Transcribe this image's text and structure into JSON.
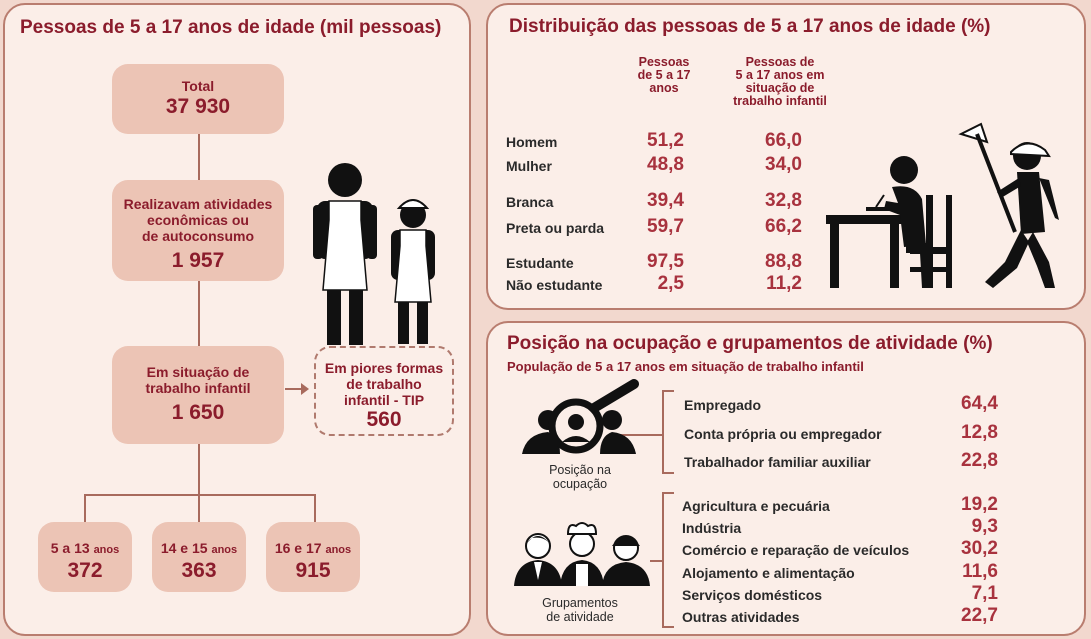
{
  "left_panel": {
    "title": "Pessoas de 5 a 17 anos de idade (mil pessoas)",
    "total": {
      "label": "Total",
      "value": "37 930"
    },
    "activities": {
      "line1": "Realizavam atividades",
      "line2": "econômicas ou",
      "line3": "de autoconsumo",
      "value": "1 957"
    },
    "child_labor": {
      "line1": "Em situação  de",
      "line2": "trabalho infantil",
      "value": "1 650"
    },
    "tip": {
      "line1": "Em piores formas",
      "line2": "de trabalho",
      "line3": "infantil  - TIP",
      "value": "560"
    },
    "age_groups": [
      {
        "label": "5 a 13",
        "unit": "anos",
        "value": "372"
      },
      {
        "label": "14 e 15",
        "unit": "anos",
        "value": "363"
      },
      {
        "label": "16 e 17",
        "unit": "anos",
        "value": "915"
      }
    ]
  },
  "dist_panel": {
    "title": "Distribuição das pessoas de 5 a 17 anos de idade (%)",
    "col1": [
      "Pessoas",
      "de 5 a 17",
      "anos"
    ],
    "col2": [
      "Pessoas de",
      "5 a 17 anos em",
      "situação de",
      "trabalho infantil"
    ],
    "rows": [
      {
        "label": "Homem",
        "v1": "51,2",
        "v2": "66,0"
      },
      {
        "label": "Mulher",
        "v1": "48,8",
        "v2": "34,0"
      },
      {
        "label": "Branca",
        "v1": "39,4",
        "v2": "32,8"
      },
      {
        "label": "Preta ou parda",
        "v1": "59,7",
        "v2": "66,2"
      },
      {
        "label": "Estudante",
        "v1": "97,5",
        "v2": "88,8"
      },
      {
        "label": "Não estudante",
        "v1": "2,5",
        "v2": "11,2"
      }
    ]
  },
  "occ_panel": {
    "title": "Posição na ocupação e grupamentos de atividade (%)",
    "subtitle": "População de 5 a 17 anos em situação de trabalho infantil",
    "position_caption": [
      "Posição na",
      "ocupação"
    ],
    "groups_caption": [
      "Grupamentos",
      "de atividade"
    ],
    "positions": [
      {
        "label": "Empregado",
        "value": "64,4"
      },
      {
        "label": "Conta própria ou empregador",
        "value": "12,8"
      },
      {
        "label": "Trabalhador familiar auxiliar",
        "value": "22,8"
      }
    ],
    "activities": [
      {
        "label": "Agricultura e pecuária",
        "value": "19,2"
      },
      {
        "label": "Indústria",
        "value": "9,3"
      },
      {
        "label": "Comércio e reparação de veículos",
        "value": "30,2"
      },
      {
        "label": "Alojamento e alimentação",
        "value": "11,6"
      },
      {
        "label": "Serviços domésticos",
        "value": "7,1"
      },
      {
        "label": "Outras atividades",
        "value": "22,7"
      }
    ]
  },
  "colors": {
    "accent": "#8b1c2c",
    "value": "#a8323e",
    "box": "#ecc4b5",
    "panel": "#fbeee8"
  }
}
